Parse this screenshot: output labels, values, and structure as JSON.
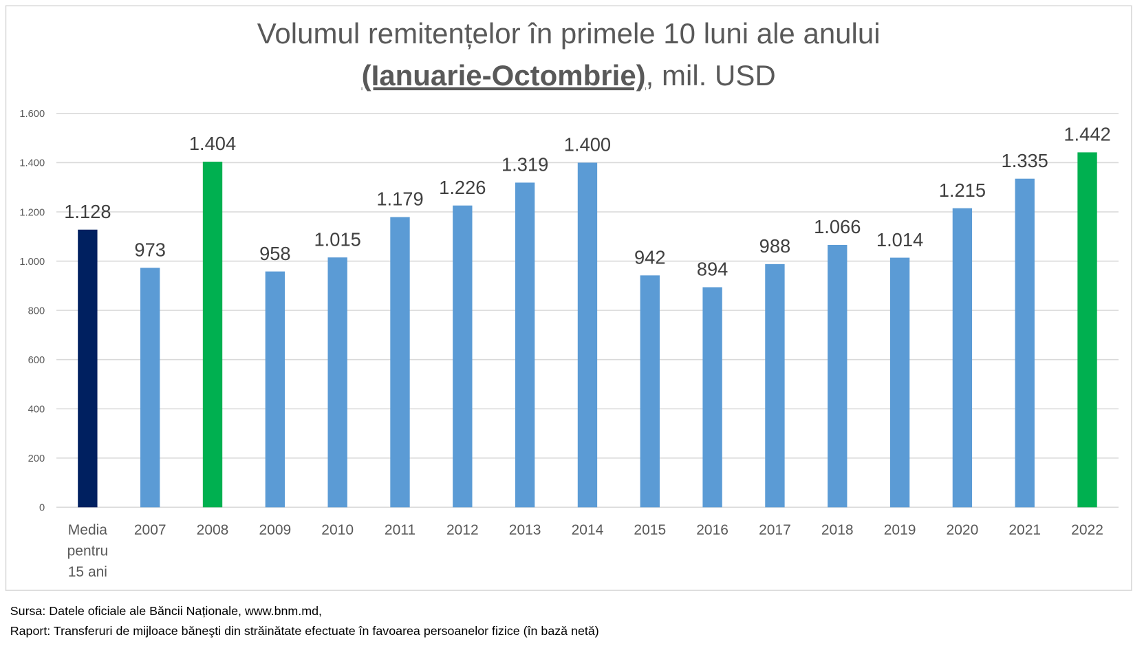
{
  "chart_data": {
    "type": "bar",
    "title_line1": "Volumul remitențelor în primele 10 luni ale anului",
    "title_line2_bold": "(Ianuarie-Octombrie)",
    "title_line2_rest": ", mil. USD",
    "categories": [
      [
        "Media",
        "pentru",
        "15 ani"
      ],
      [
        "2007"
      ],
      [
        "2008"
      ],
      [
        "2009"
      ],
      [
        "2010"
      ],
      [
        "2011"
      ],
      [
        "2012"
      ],
      [
        "2013"
      ],
      [
        "2014"
      ],
      [
        "2015"
      ],
      [
        "2016"
      ],
      [
        "2017"
      ],
      [
        "2018"
      ],
      [
        "2019"
      ],
      [
        "2020"
      ],
      [
        "2021"
      ],
      [
        "2022"
      ]
    ],
    "values": [
      1128,
      973,
      1404,
      958,
      1015,
      1179,
      1226,
      1319,
      1400,
      942,
      894,
      988,
      1066,
      1014,
      1215,
      1335,
      1442
    ],
    "data_labels": [
      "1.128",
      "973",
      "1.404",
      "958",
      "1.015",
      "1.179",
      "1.226",
      "1.319",
      "1.400",
      "942",
      "894",
      "988",
      "1.066",
      "1.014",
      "1.215",
      "1.335",
      "1.442"
    ],
    "bar_colors": [
      "#002060",
      "#5B9BD5",
      "#00B050",
      "#5B9BD5",
      "#5B9BD5",
      "#5B9BD5",
      "#5B9BD5",
      "#5B9BD5",
      "#5B9BD5",
      "#5B9BD5",
      "#5B9BD5",
      "#5B9BD5",
      "#5B9BD5",
      "#5B9BD5",
      "#5B9BD5",
      "#5B9BD5",
      "#00B050"
    ],
    "ylim": [
      0,
      1600
    ],
    "yticks": [
      0,
      200,
      400,
      600,
      800,
      1000,
      1200,
      1400,
      1600
    ],
    "ytick_labels": [
      "0",
      "200",
      "400",
      "600",
      "800",
      "1.000",
      "1.200",
      "1.400",
      "1.600"
    ],
    "grid": true,
    "xlabel": "",
    "ylabel": ""
  },
  "footer": {
    "source": "Sursa: Datele oficiale ale Băncii Naționale, www.bnm.md,",
    "report": "Raport: Transferuri de mijloace băneşti din străinătate efectuate în favoarea persoanelor fizice (în bază netă)"
  }
}
